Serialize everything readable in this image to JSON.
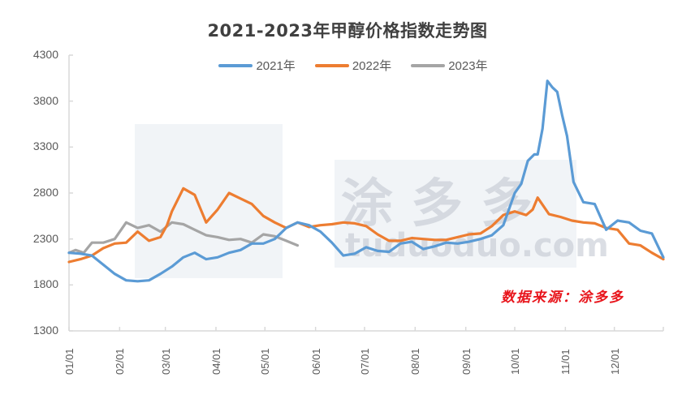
{
  "title": "2021-2023年甲醇价格指数走势图",
  "legend": [
    {
      "label": "2021年",
      "color": "#5b9bd5"
    },
    {
      "label": "2022年",
      "color": "#ed7d31"
    },
    {
      "label": "2023年",
      "color": "#a5a5a5"
    }
  ],
  "source_note": "数据来源：涂多多",
  "watermark": {
    "brand": "涂多多",
    "url": "tuduoduo.com"
  },
  "chart_data": {
    "type": "line",
    "title": "2021-2023年甲醇价格指数走势图",
    "xlabel": "",
    "ylabel": "",
    "ylim": [
      1300,
      4300
    ],
    "yticks": [
      1300,
      1800,
      2300,
      2800,
      3300,
      3800,
      4300
    ],
    "x_tick_labels": [
      "01/01",
      "02/01",
      "03/01",
      "04/01",
      "05/01",
      "06/01",
      "07/01",
      "08/01",
      "09/01",
      "10/01",
      "11/01",
      "12/01"
    ],
    "x_unit": "day_of_year",
    "grid": false,
    "legend_position": "top",
    "series": [
      {
        "name": "2021年",
        "color": "#5b9bd5",
        "x": [
          1,
          8,
          15,
          22,
          29,
          36,
          43,
          50,
          57,
          64,
          71,
          78,
          85,
          92,
          99,
          106,
          113,
          120,
          127,
          134,
          141,
          148,
          155,
          162,
          169,
          176,
          183,
          190,
          197,
          204,
          211,
          218,
          225,
          232,
          239,
          246,
          253,
          260,
          267,
          274,
          278,
          282,
          286,
          288,
          291,
          294,
          297,
          300,
          303,
          306,
          310,
          316,
          323,
          330,
          337,
          344,
          351,
          358,
          365
        ],
        "values": [
          2150,
          2140,
          2120,
          2020,
          1920,
          1850,
          1840,
          1850,
          1920,
          2000,
          2100,
          2150,
          2080,
          2100,
          2150,
          2180,
          2250,
          2250,
          2300,
          2420,
          2480,
          2450,
          2380,
          2260,
          2120,
          2140,
          2210,
          2170,
          2160,
          2250,
          2270,
          2190,
          2220,
          2260,
          2250,
          2270,
          2300,
          2340,
          2450,
          2800,
          2900,
          3150,
          3220,
          3220,
          3500,
          4020,
          3950,
          3900,
          3650,
          3420,
          2920,
          2700,
          2680,
          2400,
          2500,
          2480,
          2390,
          2360,
          2100
        ]
      },
      {
        "name": "2022年",
        "color": "#ed7d31",
        "x": [
          1,
          8,
          15,
          22,
          29,
          36,
          43,
          50,
          57,
          61,
          64,
          71,
          78,
          85,
          92,
          99,
          106,
          113,
          120,
          127,
          134,
          141,
          148,
          155,
          162,
          169,
          176,
          183,
          190,
          197,
          204,
          211,
          218,
          225,
          232,
          239,
          246,
          253,
          260,
          267,
          274,
          281,
          285,
          288,
          295,
          302,
          309,
          316,
          323,
          330,
          337,
          344,
          351,
          358,
          365
        ],
        "values": [
          2050,
          2080,
          2120,
          2200,
          2250,
          2260,
          2380,
          2280,
          2320,
          2450,
          2600,
          2850,
          2780,
          2480,
          2620,
          2800,
          2740,
          2680,
          2550,
          2480,
          2420,
          2480,
          2430,
          2450,
          2460,
          2480,
          2470,
          2440,
          2350,
          2280,
          2280,
          2310,
          2300,
          2290,
          2290,
          2320,
          2350,
          2360,
          2440,
          2560,
          2600,
          2560,
          2620,
          2750,
          2570,
          2540,
          2500,
          2480,
          2470,
          2420,
          2400,
          2250,
          2230,
          2150,
          2080
        ]
      },
      {
        "name": "2023年",
        "color": "#a5a5a5",
        "x": [
          1,
          5,
          10,
          15,
          22,
          29,
          36,
          43,
          50,
          57,
          64,
          71,
          78,
          85,
          92,
          99,
          106,
          113,
          120,
          127,
          134,
          141
        ],
        "values": [
          2150,
          2180,
          2150,
          2260,
          2260,
          2300,
          2480,
          2420,
          2450,
          2380,
          2480,
          2460,
          2400,
          2340,
          2320,
          2290,
          2300,
          2260,
          2350,
          2330,
          2280,
          2230
        ]
      }
    ]
  }
}
